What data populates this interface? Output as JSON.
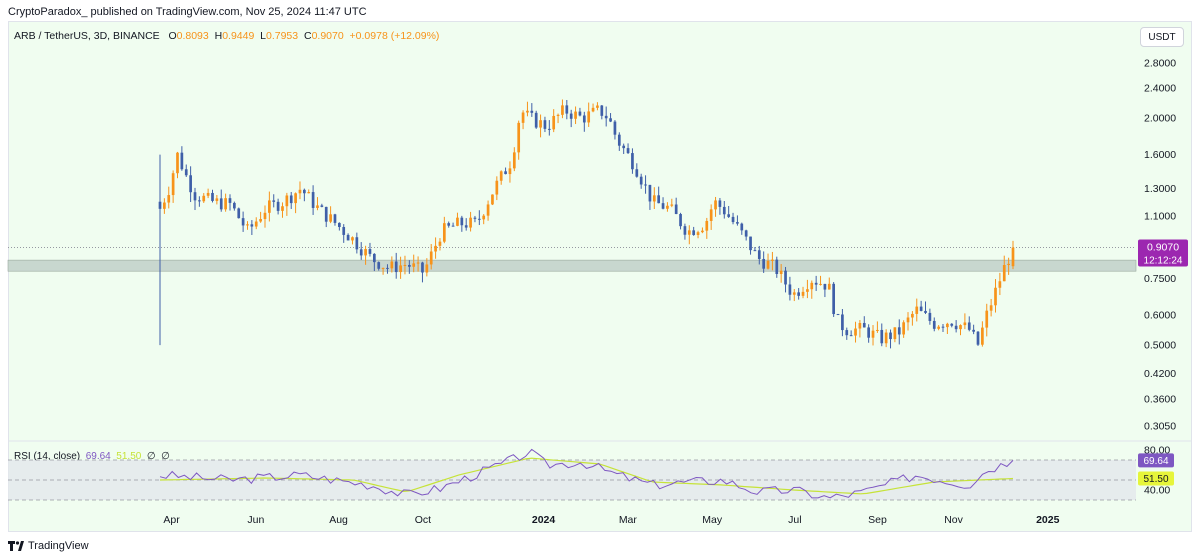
{
  "header": {
    "publish_line": "CryptoParadox_ published on TradingView.com, Nov 25, 2024 11:47 UTC"
  },
  "legend": {
    "symbol": "ARB / TetherUS, 3D, BINANCE",
    "o_label": "O",
    "o_value": "0.8093",
    "h_label": "H",
    "h_value": "0.9449",
    "l_label": "L",
    "l_value": "0.7953",
    "c_label": "C",
    "c_value": "0.9070",
    "change": "+0.0978 (+12.09%)"
  },
  "currency_button": "USDT",
  "rsi_legend": {
    "label": "RSI (14, close)",
    "rsi_value": "69.64",
    "ma_value": "51.50",
    "extra1": "∅",
    "extra2": "∅"
  },
  "footer": {
    "brand": "TradingView"
  },
  "colors": {
    "up": "#f7931a",
    "down": "#3f5fa8",
    "rsi_line": "#7e57c2",
    "rsi_ma": "#c6e338",
    "support_zone": "#c8d7cf",
    "bg": "#f0fdf0"
  },
  "chart_data": [
    {
      "type": "candlestick",
      "scale": "log",
      "y_ticks": [
        0.305,
        0.36,
        0.42,
        0.5,
        0.6,
        0.75,
        1.1,
        1.3,
        1.6,
        2.0,
        2.4,
        2.8
      ],
      "y_tick_labels": [
        "0.3050",
        "0.3600",
        "0.4200",
        "0.5000",
        "0.6000",
        "0.7500",
        "1.1000",
        "1.3000",
        "1.6000",
        "2.0000",
        "2.4000",
        "2.8000"
      ],
      "x_tick_labels": [
        "Apr",
        "Jun",
        "Aug",
        "Oct",
        "2024",
        "Mar",
        "May",
        "Jul",
        "Sep",
        "Nov",
        "2025"
      ],
      "last_price": {
        "value": 0.907,
        "label": "0.9070",
        "countdown": "12:12:24"
      },
      "support_zone": [
        0.785,
        0.84
      ],
      "close_path": [
        [
          0.0,
          1.15
        ],
        [
          0.5,
          1.3
        ],
        [
          1.0,
          1.6
        ],
        [
          1.5,
          1.4
        ],
        [
          2.0,
          1.25
        ],
        [
          3.0,
          1.2
        ],
        [
          4.0,
          1.18
        ],
        [
          5.0,
          1.0
        ],
        [
          6.0,
          1.15
        ],
        [
          7.0,
          1.2
        ],
        [
          8.0,
          1.3
        ],
        [
          9.0,
          1.15
        ],
        [
          10.0,
          1.05
        ],
        [
          11.0,
          0.95
        ],
        [
          12.0,
          0.85
        ],
        [
          13.0,
          0.8
        ],
        [
          14.0,
          0.82
        ],
        [
          15.0,
          0.78
        ],
        [
          16.0,
          1.0
        ],
        [
          17.0,
          1.05
        ],
        [
          18.0,
          1.05
        ],
        [
          19.0,
          1.3
        ],
        [
          20.0,
          1.55
        ],
        [
          20.5,
          2.1
        ],
        [
          21.0,
          2.0
        ],
        [
          22.0,
          1.9
        ],
        [
          23.0,
          2.1
        ],
        [
          24.0,
          2.0
        ],
        [
          25.0,
          2.1
        ],
        [
          25.5,
          2.0
        ],
        [
          26.0,
          1.75
        ],
        [
          27.0,
          1.5
        ],
        [
          28.0,
          1.2
        ],
        [
          29.0,
          1.15
        ],
        [
          30.0,
          1.0
        ],
        [
          31.0,
          1.05
        ],
        [
          31.5,
          1.2
        ],
        [
          32.0,
          1.15
        ],
        [
          33.0,
          1.0
        ],
        [
          34.0,
          0.85
        ],
        [
          35.0,
          0.8
        ],
        [
          36.0,
          0.68
        ],
        [
          37.0,
          0.75
        ],
        [
          38.0,
          0.72
        ],
        [
          38.5,
          0.58
        ],
        [
          39.0,
          0.55
        ],
        [
          40.0,
          0.55
        ],
        [
          41.0,
          0.52
        ],
        [
          42.0,
          0.54
        ],
        [
          43.0,
          0.62
        ],
        [
          44.0,
          0.57
        ],
        [
          45.0,
          0.58
        ],
        [
          46.0,
          0.55
        ],
        [
          46.5,
          0.5
        ],
        [
          47.0,
          0.6
        ],
        [
          48.0,
          0.8
        ],
        [
          48.5,
          0.907
        ]
      ]
    },
    {
      "type": "line",
      "name": "RSI (14, close)",
      "y_ticks": [
        40.0,
        80.0
      ],
      "y_tick_labels": [
        "40.00",
        "80.00"
      ],
      "band": [
        30,
        70
      ],
      "current": {
        "rsi": 69.64,
        "ma": 51.5
      },
      "rsi_path": [
        [
          0,
          55
        ],
        [
          4,
          50
        ],
        [
          8,
          55
        ],
        [
          12,
          45
        ],
        [
          14,
          35
        ],
        [
          16,
          42
        ],
        [
          20,
          70
        ],
        [
          21,
          78
        ],
        [
          22,
          65
        ],
        [
          24,
          68
        ],
        [
          26,
          55
        ],
        [
          28,
          45
        ],
        [
          30,
          48
        ],
        [
          32,
          50
        ],
        [
          34,
          38
        ],
        [
          36,
          40
        ],
        [
          38,
          32
        ],
        [
          40,
          38
        ],
        [
          43,
          55
        ],
        [
          46,
          45
        ],
        [
          47,
          60
        ],
        [
          48.5,
          69.64
        ]
      ],
      "ma_path": [
        [
          0,
          50
        ],
        [
          6,
          52
        ],
        [
          11,
          50
        ],
        [
          14,
          38
        ],
        [
          17,
          55
        ],
        [
          21,
          72
        ],
        [
          25,
          66
        ],
        [
          28,
          48
        ],
        [
          32,
          45
        ],
        [
          36,
          40
        ],
        [
          40,
          36
        ],
        [
          44,
          48
        ],
        [
          48.5,
          51.5
        ]
      ]
    }
  ]
}
